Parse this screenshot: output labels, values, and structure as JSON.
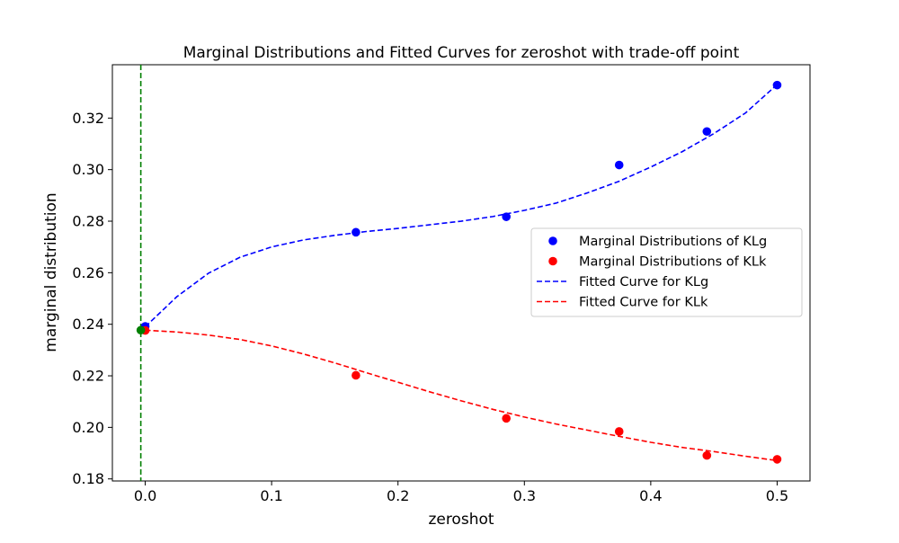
{
  "chart_data": {
    "type": "scatter",
    "title": "Marginal Distributions and Fitted Curves for zeroshot with trade-off point",
    "xlabel": "zeroshot",
    "ylabel": "marginal distribution",
    "xlim": [
      -0.026,
      0.526
    ],
    "ylim": [
      0.1792,
      0.3407
    ],
    "xticks": [
      0.0,
      0.1,
      0.2,
      0.3,
      0.4,
      0.5
    ],
    "xtick_labels": [
      "0.0",
      "0.1",
      "0.2",
      "0.3",
      "0.4",
      "0.5"
    ],
    "yticks": [
      0.18,
      0.2,
      0.22,
      0.24,
      0.26,
      0.28,
      0.3,
      0.32
    ],
    "ytick_labels": [
      "0.18",
      "0.20",
      "0.22",
      "0.24",
      "0.26",
      "0.28",
      "0.30",
      "0.32"
    ],
    "grid": false,
    "legend_position": "center-right",
    "series": [
      {
        "name": "Marginal Distributions of KLg",
        "kind": "scatter",
        "color": "#0000ff",
        "x": [
          0.0,
          0.1667,
          0.2857,
          0.375,
          0.4444,
          0.5
        ],
        "y": [
          0.2392,
          0.2757,
          0.2817,
          0.3018,
          0.3148,
          0.3328
        ]
      },
      {
        "name": "Marginal Distributions of KLk",
        "kind": "scatter",
        "color": "#ff0000",
        "x": [
          0.0,
          0.1667,
          0.2857,
          0.375,
          0.4444,
          0.5
        ],
        "y": [
          0.2376,
          0.2202,
          0.2035,
          0.1984,
          0.1891,
          0.1876
        ]
      },
      {
        "name": "Fitted Curve for KLg",
        "kind": "line",
        "style": "dashed",
        "color": "#0000ff",
        "x": [
          0.0,
          0.025,
          0.05,
          0.075,
          0.1,
          0.125,
          0.15,
          0.175,
          0.2,
          0.225,
          0.25,
          0.275,
          0.3,
          0.325,
          0.35,
          0.375,
          0.4,
          0.425,
          0.45,
          0.475,
          0.5
        ],
        "y": [
          0.239,
          0.2507,
          0.2598,
          0.266,
          0.27,
          0.2727,
          0.2745,
          0.276,
          0.2772,
          0.2786,
          0.28,
          0.2818,
          0.2842,
          0.287,
          0.291,
          0.2955,
          0.301,
          0.307,
          0.314,
          0.322,
          0.333
        ]
      },
      {
        "name": "Fitted Curve for KLk",
        "kind": "line",
        "style": "dashed",
        "color": "#ff0000",
        "x": [
          0.0,
          0.025,
          0.05,
          0.075,
          0.1,
          0.125,
          0.15,
          0.175,
          0.2,
          0.225,
          0.25,
          0.275,
          0.3,
          0.325,
          0.35,
          0.375,
          0.4,
          0.425,
          0.45,
          0.475,
          0.5
        ],
        "y": [
          0.2377,
          0.237,
          0.2358,
          0.2341,
          0.2316,
          0.2285,
          0.225,
          0.2212,
          0.2175,
          0.2138,
          0.2103,
          0.207,
          0.204,
          0.2013,
          0.1989,
          0.1965,
          0.1942,
          0.1922,
          0.1906,
          0.1888,
          0.1871
        ]
      }
    ],
    "vline": {
      "x": -0.0035,
      "color": "#008000",
      "style": "dashed"
    },
    "tradeoff_point": {
      "x": -0.0035,
      "y": 0.2377,
      "color": "#008000"
    }
  }
}
